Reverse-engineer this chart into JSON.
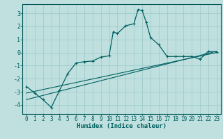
{
  "xlabel": "Humidex (Indice chaleur)",
  "background_color": "#c0e0e0",
  "grid_color": "#a0cccc",
  "line_color": "#006060",
  "spine_color": "#005555",
  "xlim": [
    -0.5,
    23.5
  ],
  "ylim": [
    -4.7,
    3.7
  ],
  "yticks": [
    -4,
    -3,
    -2,
    -1,
    0,
    1,
    2,
    3
  ],
  "xticks": [
    0,
    1,
    2,
    3,
    4,
    5,
    6,
    7,
    8,
    9,
    10,
    11,
    12,
    13,
    14,
    15,
    16,
    17,
    18,
    19,
    20,
    21,
    22,
    23
  ],
  "curve1_x": [
    0,
    1,
    2,
    3,
    4,
    5,
    6,
    7,
    8,
    9,
    10,
    10.5,
    11,
    12,
    13,
    13.5,
    14,
    14.5,
    15,
    16,
    17,
    18,
    19,
    20,
    21,
    22,
    23
  ],
  "curve1_y": [
    -2.6,
    -3.1,
    -3.6,
    -4.2,
    -2.9,
    -1.6,
    -0.8,
    -0.7,
    -0.65,
    -0.35,
    -0.25,
    1.6,
    1.45,
    2.05,
    2.2,
    3.3,
    3.2,
    2.3,
    1.15,
    0.6,
    -0.3,
    -0.3,
    -0.3,
    -0.3,
    -0.5,
    0.1,
    0.05
  ],
  "line1_x": [
    0,
    23
  ],
  "line1_y": [
    -3.6,
    0.1
  ],
  "line2_x": [
    0,
    23
  ],
  "line2_y": [
    -3.1,
    0.0
  ],
  "xlabel_fontsize": 6.5,
  "tick_fontsize": 5.5,
  "ytick_fontsize": 6.0
}
